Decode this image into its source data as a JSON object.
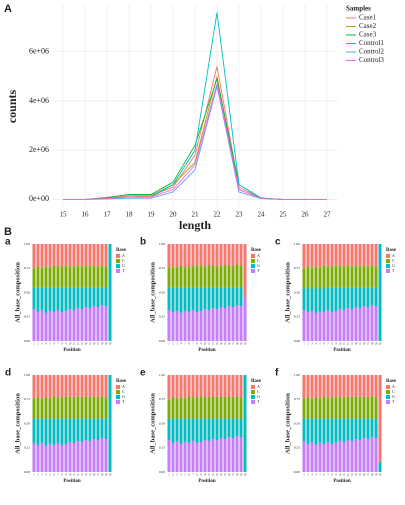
{
  "section_label": "B",
  "chart_data": [
    {
      "type": "line",
      "label": "A",
      "xlabel": "length",
      "ylabel": "counts",
      "legend_title": "Samples",
      "grid": true,
      "x": [
        15,
        16,
        17,
        18,
        19,
        20,
        21,
        22,
        23,
        24,
        25,
        26,
        27
      ],
      "xlim": [
        14.5,
        27.5
      ],
      "xticks": [
        15,
        16,
        17,
        18,
        19,
        20,
        21,
        22,
        23,
        24,
        25,
        26,
        27
      ],
      "ylim": [
        -350000,
        7900000
      ],
      "yticks": [
        {
          "value": 0,
          "label": "0e+00"
        },
        {
          "value": 2000000,
          "label": "2e+06"
        },
        {
          "value": 4000000,
          "label": "4e+06"
        },
        {
          "value": 6000000,
          "label": "6e+06"
        }
      ],
      "series": [
        {
          "name": "Case1",
          "color": "#F8766D",
          "values": [
            0,
            0,
            50000,
            150000,
            150000,
            500000,
            1800000,
            5400000,
            500000,
            50000,
            0,
            0,
            0
          ]
        },
        {
          "name": "Case2",
          "color": "#B79F00",
          "values": [
            0,
            0,
            50000,
            100000,
            150000,
            600000,
            1500000,
            5000000,
            400000,
            50000,
            0,
            0,
            0
          ]
        },
        {
          "name": "Case3",
          "color": "#00BA38",
          "values": [
            0,
            0,
            80000,
            200000,
            200000,
            700000,
            2200000,
            4900000,
            600000,
            60000,
            0,
            0,
            0
          ]
        },
        {
          "name": "Control1",
          "color": "#00BFC4",
          "values": [
            0,
            0,
            30000,
            100000,
            100000,
            600000,
            2000000,
            7600000,
            600000,
            50000,
            0,
            0,
            0
          ]
        },
        {
          "name": "Control2",
          "color": "#619CFF",
          "values": [
            0,
            0,
            20000,
            50000,
            50000,
            300000,
            1200000,
            4600000,
            300000,
            30000,
            0,
            0,
            0
          ]
        },
        {
          "name": "Control3",
          "color": "#F564E3",
          "values": [
            0,
            0,
            30000,
            100000,
            100000,
            400000,
            1400000,
            4700000,
            400000,
            40000,
            0,
            0,
            0
          ]
        }
      ]
    },
    {
      "type": "stacked_bar",
      "label": "a",
      "xlabel": "Position",
      "ylabel": "All_base_composition",
      "legend_title": "Base",
      "categories": [
        "1",
        "2",
        "3",
        "4",
        "5",
        "6",
        "7",
        "8",
        "9",
        "10",
        "11",
        "12",
        "13",
        "14",
        "15",
        "16",
        "17",
        "18",
        "19",
        "20"
      ],
      "ylim": [
        0,
        1
      ],
      "yticks": [
        {
          "value": 0,
          "label": "0.00"
        },
        0.25,
        {
          "value": 0.5,
          "label": "0.50"
        },
        0.75,
        {
          "value": 1,
          "label": "1.00"
        }
      ],
      "series": [
        {
          "name": "A",
          "color": "#F8766D",
          "values": [
            0.25,
            0.23,
            0.24,
            0.23,
            0.24,
            0.22,
            0.23,
            0.23,
            0.22,
            0.23,
            0.23,
            0.22,
            0.23,
            0.22,
            0.23,
            0.22,
            0.23,
            0.22,
            0.23,
            0
          ]
        },
        {
          "name": "C",
          "color": "#7CAE00",
          "values": [
            0.2,
            0.22,
            0.21,
            0.22,
            0.21,
            0.23,
            0.22,
            0.22,
            0.23,
            0.22,
            0.22,
            0.23,
            0.22,
            0.23,
            0.22,
            0.23,
            0.22,
            0.23,
            0.22,
            0
          ]
        },
        {
          "name": "G",
          "color": "#00BFC4",
          "values": [
            0.22,
            0.25,
            0.23,
            0.26,
            0.24,
            0.25,
            0.23,
            0.25,
            0.24,
            0.22,
            0.23,
            0.21,
            0.22,
            0.2,
            0.21,
            0.19,
            0.2,
            0.18,
            0.19,
            1
          ]
        },
        {
          "name": "T",
          "color": "#C77CFF",
          "values": [
            0.33,
            0.3,
            0.32,
            0.29,
            0.31,
            0.3,
            0.32,
            0.3,
            0.31,
            0.33,
            0.32,
            0.34,
            0.33,
            0.35,
            0.34,
            0.36,
            0.35,
            0.37,
            0.36,
            0
          ]
        }
      ]
    },
    {
      "type": "stacked_bar",
      "label": "b",
      "xlabel": "Position",
      "ylabel": "All_base_composition",
      "legend_title": "Base",
      "categories": [
        "1",
        "2",
        "3",
        "4",
        "5",
        "6",
        "7",
        "8",
        "9",
        "10",
        "11",
        "12",
        "13",
        "14",
        "15",
        "16",
        "17",
        "18",
        "19",
        "20"
      ],
      "ylim": [
        0,
        1
      ],
      "yticks": [
        {
          "value": 0,
          "label": "0.00"
        },
        0.25,
        {
          "value": 0.5,
          "label": "0.50"
        },
        0.75,
        {
          "value": 1,
          "label": "1.00"
        }
      ],
      "series": [
        {
          "name": "A",
          "color": "#F8766D",
          "values": [
            0.24,
            0.23,
            0.24,
            0.22,
            0.24,
            0.23,
            0.23,
            0.22,
            0.22,
            0.23,
            0.22,
            0.22,
            0.23,
            0.22,
            0.22,
            0.22,
            0.23,
            0.21,
            0.22,
            0.55
          ]
        },
        {
          "name": "C",
          "color": "#7CAE00",
          "values": [
            0.21,
            0.22,
            0.21,
            0.23,
            0.21,
            0.22,
            0.22,
            0.23,
            0.23,
            0.22,
            0.23,
            0.23,
            0.22,
            0.23,
            0.23,
            0.23,
            0.22,
            0.24,
            0.23,
            0
          ]
        },
        {
          "name": "G",
          "color": "#00BFC4",
          "values": [
            0.23,
            0.25,
            0.24,
            0.26,
            0.24,
            0.25,
            0.23,
            0.25,
            0.24,
            0.22,
            0.23,
            0.21,
            0.22,
            0.2,
            0.21,
            0.19,
            0.2,
            0.18,
            0.19,
            0
          ]
        },
        {
          "name": "T",
          "color": "#C77CFF",
          "values": [
            0.32,
            0.3,
            0.31,
            0.29,
            0.31,
            0.3,
            0.32,
            0.3,
            0.31,
            0.33,
            0.32,
            0.34,
            0.33,
            0.35,
            0.34,
            0.36,
            0.35,
            0.37,
            0.36,
            0.45
          ]
        }
      ]
    },
    {
      "type": "stacked_bar",
      "label": "c",
      "xlabel": "Position",
      "ylabel": "All_base_composition",
      "legend_title": "Base",
      "categories": [
        "1",
        "2",
        "3",
        "4",
        "5",
        "6",
        "7",
        "8",
        "9",
        "10",
        "11",
        "12",
        "13",
        "14",
        "15",
        "16",
        "17",
        "18",
        "19",
        "20"
      ],
      "ylim": [
        0,
        1
      ],
      "yticks": [
        {
          "value": 0,
          "label": "0.00"
        },
        0.25,
        {
          "value": 0.5,
          "label": "0.50"
        },
        0.75,
        {
          "value": 1,
          "label": "1.00"
        }
      ],
      "series": [
        {
          "name": "A",
          "color": "#F8766D",
          "values": [
            0.25,
            0.23,
            0.24,
            0.23,
            0.24,
            0.22,
            0.23,
            0.23,
            0.22,
            0.23,
            0.23,
            0.22,
            0.23,
            0.22,
            0.23,
            0.22,
            0.23,
            0.22,
            0.23,
            0
          ]
        },
        {
          "name": "C",
          "color": "#7CAE00",
          "values": [
            0.21,
            0.22,
            0.22,
            0.22,
            0.22,
            0.23,
            0.22,
            0.22,
            0.23,
            0.22,
            0.22,
            0.23,
            0.22,
            0.23,
            0.22,
            0.23,
            0.22,
            0.23,
            0.22,
            0
          ]
        },
        {
          "name": "G",
          "color": "#00BFC4",
          "values": [
            0.22,
            0.25,
            0.23,
            0.26,
            0.24,
            0.25,
            0.23,
            0.25,
            0.24,
            0.22,
            0.23,
            0.21,
            0.22,
            0.2,
            0.21,
            0.19,
            0.2,
            0.18,
            0.19,
            1
          ]
        },
        {
          "name": "T",
          "color": "#C77CFF",
          "values": [
            0.32,
            0.3,
            0.31,
            0.29,
            0.3,
            0.3,
            0.32,
            0.3,
            0.31,
            0.33,
            0.32,
            0.34,
            0.33,
            0.35,
            0.34,
            0.36,
            0.35,
            0.37,
            0.36,
            0
          ]
        }
      ]
    },
    {
      "type": "stacked_bar",
      "label": "d",
      "xlabel": "Position",
      "ylabel": "All_base_composition",
      "legend_title": "Base",
      "categories": [
        "1",
        "2",
        "3",
        "4",
        "5",
        "6",
        "7",
        "8",
        "9",
        "10",
        "11",
        "12",
        "13",
        "14",
        "15",
        "16",
        "17",
        "18",
        "19",
        "20"
      ],
      "ylim": [
        0,
        1
      ],
      "yticks": [
        {
          "value": 0,
          "label": "0.00"
        },
        0.25,
        {
          "value": 0.5,
          "label": "0.50"
        },
        0.75,
        {
          "value": 1,
          "label": "1.00"
        }
      ],
      "series": [
        {
          "name": "A",
          "color": "#F8766D",
          "values": [
            0.24,
            0.23,
            0.24,
            0.23,
            0.24,
            0.22,
            0.23,
            0.23,
            0.22,
            0.23,
            0.23,
            0.22,
            0.23,
            0.22,
            0.23,
            0.22,
            0.23,
            0.22,
            0.23,
            0
          ]
        },
        {
          "name": "C",
          "color": "#7CAE00",
          "values": [
            0.21,
            0.22,
            0.21,
            0.22,
            0.21,
            0.23,
            0.22,
            0.22,
            0.23,
            0.22,
            0.22,
            0.23,
            0.22,
            0.23,
            0.22,
            0.23,
            0.22,
            0.23,
            0.22,
            0
          ]
        },
        {
          "name": "G",
          "color": "#00BFC4",
          "values": [
            0.25,
            0.27,
            0.25,
            0.28,
            0.26,
            0.27,
            0.25,
            0.27,
            0.26,
            0.24,
            0.25,
            0.23,
            0.24,
            0.22,
            0.23,
            0.21,
            0.22,
            0.2,
            0.21,
            1
          ]
        },
        {
          "name": "T",
          "color": "#C77CFF",
          "values": [
            0.3,
            0.28,
            0.3,
            0.27,
            0.29,
            0.28,
            0.3,
            0.28,
            0.29,
            0.31,
            0.3,
            0.32,
            0.31,
            0.33,
            0.32,
            0.34,
            0.33,
            0.35,
            0.34,
            0
          ]
        }
      ]
    },
    {
      "type": "stacked_bar",
      "label": "e",
      "xlabel": "Position",
      "ylabel": "All_base_composition",
      "legend_title": "Base",
      "categories": [
        "1",
        "2",
        "3",
        "4",
        "5",
        "6",
        "7",
        "8",
        "9",
        "10",
        "11",
        "12",
        "13",
        "14",
        "15",
        "16",
        "17",
        "18",
        "19",
        "20"
      ],
      "ylim": [
        0,
        1
      ],
      "yticks": [
        {
          "value": 0,
          "label": "0.00"
        },
        0.25,
        {
          "value": 0.5,
          "label": "0.50"
        },
        0.75,
        {
          "value": 1,
          "label": "1.00"
        }
      ],
      "series": [
        {
          "name": "A",
          "color": "#F8766D",
          "values": [
            0.25,
            0.23,
            0.24,
            0.23,
            0.24,
            0.22,
            0.23,
            0.23,
            0.22,
            0.23,
            0.23,
            0.22,
            0.23,
            0.22,
            0.23,
            0.22,
            0.23,
            0.22,
            0.23,
            0
          ]
        },
        {
          "name": "C",
          "color": "#7CAE00",
          "values": [
            0.2,
            0.22,
            0.21,
            0.22,
            0.21,
            0.23,
            0.22,
            0.22,
            0.23,
            0.22,
            0.22,
            0.23,
            0.22,
            0.23,
            0.22,
            0.23,
            0.22,
            0.23,
            0.22,
            0
          ]
        },
        {
          "name": "G",
          "color": "#00BFC4",
          "values": [
            0.22,
            0.25,
            0.23,
            0.26,
            0.24,
            0.25,
            0.23,
            0.25,
            0.24,
            0.22,
            0.23,
            0.21,
            0.22,
            0.2,
            0.21,
            0.19,
            0.2,
            0.18,
            0.19,
            1
          ]
        },
        {
          "name": "T",
          "color": "#C77CFF",
          "values": [
            0.33,
            0.3,
            0.32,
            0.29,
            0.31,
            0.3,
            0.32,
            0.3,
            0.31,
            0.33,
            0.32,
            0.34,
            0.33,
            0.35,
            0.34,
            0.36,
            0.35,
            0.37,
            0.36,
            0
          ]
        }
      ]
    },
    {
      "type": "stacked_bar",
      "label": "f",
      "xlabel": "Position",
      "ylabel": "All_base_composition",
      "legend_title": "Base",
      "categories": [
        "1",
        "2",
        "3",
        "4",
        "5",
        "6",
        "7",
        "8",
        "9",
        "10",
        "11",
        "12",
        "13",
        "14",
        "15",
        "16",
        "17",
        "18",
        "19",
        "20"
      ],
      "ylim": [
        0,
        1
      ],
      "yticks": [
        {
          "value": 0,
          "label": "0.00"
        },
        0.25,
        {
          "value": 0.5,
          "label": "0.50"
        },
        0.75,
        {
          "value": 1,
          "label": "1.00"
        }
      ],
      "series": [
        {
          "name": "A",
          "color": "#F8766D",
          "values": [
            0.24,
            0.23,
            0.24,
            0.23,
            0.24,
            0.22,
            0.23,
            0.23,
            0.22,
            0.23,
            0.23,
            0.22,
            0.23,
            0.22,
            0.23,
            0.22,
            0.23,
            0.22,
            0.23,
            0.9
          ]
        },
        {
          "name": "C",
          "color": "#7CAE00",
          "values": [
            0.21,
            0.22,
            0.21,
            0.22,
            0.21,
            0.23,
            0.22,
            0.22,
            0.23,
            0.22,
            0.22,
            0.23,
            0.22,
            0.23,
            0.22,
            0.23,
            0.22,
            0.23,
            0.22,
            0
          ]
        },
        {
          "name": "G",
          "color": "#00BFC4",
          "values": [
            0.23,
            0.26,
            0.24,
            0.27,
            0.25,
            0.26,
            0.24,
            0.26,
            0.25,
            0.23,
            0.24,
            0.22,
            0.23,
            0.21,
            0.22,
            0.2,
            0.21,
            0.19,
            0.2,
            0.1
          ]
        },
        {
          "name": "T",
          "color": "#C77CFF",
          "values": [
            0.32,
            0.29,
            0.31,
            0.28,
            0.3,
            0.29,
            0.31,
            0.29,
            0.3,
            0.32,
            0.31,
            0.33,
            0.32,
            0.34,
            0.33,
            0.35,
            0.34,
            0.36,
            0.35,
            0
          ]
        }
      ]
    }
  ]
}
